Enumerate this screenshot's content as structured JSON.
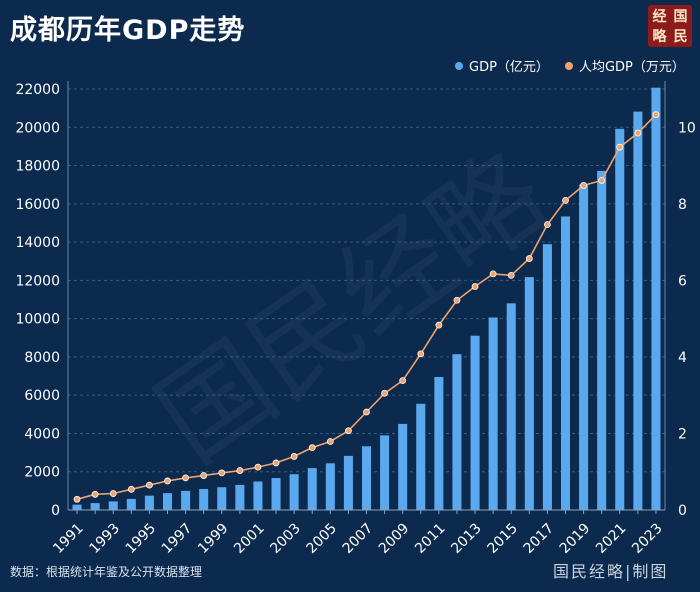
{
  "title": "成都历年GDP走势",
  "logo": {
    "text": [
      "经",
      "国",
      "略",
      "民"
    ]
  },
  "legend": {
    "gdp": "GDP（亿元）",
    "per_capita": "人均GDP（万元）"
  },
  "source": "数据：根据统计年鉴及公开数据整理",
  "credit": "国民经略|制图",
  "watermark": "国民经略",
  "colors": {
    "background": "#0b2a4e",
    "bar": "#5aa9ee",
    "line": "#f0a36e",
    "grid": "#3b5b7d"
  },
  "chart_data": {
    "type": "bar",
    "title": "成都历年GDP走势",
    "categories": [
      "1991",
      "1992",
      "1993",
      "1994",
      "1995",
      "1996",
      "1997",
      "1998",
      "1999",
      "2000",
      "2001",
      "2002",
      "2003",
      "2004",
      "2005",
      "2006",
      "2007",
      "2008",
      "2009",
      "2010",
      "2011",
      "2012",
      "2013",
      "2014",
      "2015",
      "2016",
      "2017",
      "2018",
      "2019",
      "2020",
      "2021",
      "2022",
      "2023"
    ],
    "x_tick_labels": [
      "1991",
      "1993",
      "1995",
      "1997",
      "1999",
      "2001",
      "2003",
      "2005",
      "2007",
      "2009",
      "2011",
      "2013",
      "2015",
      "2017",
      "2019",
      "2021",
      "2023"
    ],
    "series": [
      {
        "name": "GDP（亿元）",
        "type": "bar",
        "axis": "left",
        "values": [
          280,
          360,
          450,
          580,
          750,
          880,
          1000,
          1100,
          1190,
          1310,
          1490,
          1670,
          1870,
          2190,
          2440,
          2830,
          3330,
          3900,
          4500,
          5550,
          6950,
          8140,
          9110,
          10060,
          10800,
          12170,
          13890,
          15340,
          17010,
          17720,
          19920,
          20820,
          22070
        ]
      },
      {
        "name": "人均GDP（万元）",
        "type": "line",
        "axis": "right",
        "values": [
          0.28,
          0.41,
          0.43,
          0.54,
          0.65,
          0.76,
          0.84,
          0.9,
          0.97,
          1.03,
          1.12,
          1.23,
          1.4,
          1.63,
          1.79,
          2.07,
          2.56,
          3.05,
          3.38,
          4.08,
          4.83,
          5.48,
          5.84,
          6.17,
          6.13,
          6.57,
          7.46,
          8.09,
          8.48,
          8.61,
          9.48,
          9.85,
          10.33
        ]
      }
    ],
    "y_left": {
      "min": 0,
      "max": 22000,
      "ticks": [
        0,
        2000,
        4000,
        6000,
        8000,
        10000,
        12000,
        14000,
        16000,
        18000,
        20000,
        22000
      ]
    },
    "y_right": {
      "min": 0,
      "max": 11,
      "ticks": [
        0,
        2,
        4,
        6,
        8,
        10
      ]
    },
    "grid": true,
    "legend_position": "top-right"
  }
}
